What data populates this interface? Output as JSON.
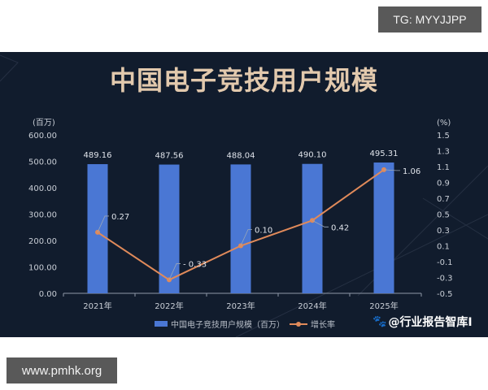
{
  "overlay": {
    "top_tag": "TG: MYYJJPP",
    "bottom_tag": "www.pmhk.org"
  },
  "panel": {
    "title": "中国电子竞技用户规模",
    "watermark_icon": "paw-icon",
    "watermark": "@行业报告智库I"
  },
  "colors": {
    "background": "#111c2d",
    "bar": "#4a77d4",
    "line": "#e08a5a",
    "title": "#e2c9ad"
  },
  "chart_data": {
    "type": "bar+line",
    "title": "中国电子竞技用户规模",
    "categories": [
      "2021年",
      "2022年",
      "2023年",
      "2024年",
      "2025年"
    ],
    "series": [
      {
        "name": "中国电子竞技用户规模（百万）",
        "type": "bar",
        "axis": "left",
        "values": [
          489.16,
          487.56,
          488.04,
          490.1,
          495.31
        ],
        "labels": [
          "489.16",
          "487.56",
          "488.04",
          "490.10",
          "495.31"
        ]
      },
      {
        "name": "增长率",
        "type": "line",
        "axis": "right",
        "values": [
          0.27,
          -0.33,
          0.1,
          0.42,
          1.06
        ],
        "labels": [
          "0.27",
          "- 0.33",
          "0.10",
          "0.42",
          "1.06"
        ]
      }
    ],
    "left_axis": {
      "unit": "(百万)",
      "ticks": [
        "0.00",
        "100.00",
        "200.00",
        "300.00",
        "400.00",
        "500.00",
        "600.00"
      ],
      "range": [
        0,
        600
      ]
    },
    "right_axis": {
      "unit": "(%)",
      "ticks": [
        "-0.5",
        "-0.3",
        "-0.1",
        "0.1",
        "0.3",
        "0.5",
        "0.7",
        "0.9",
        "1.1",
        "1.3",
        "1.5"
      ],
      "range": [
        -0.5,
        1.5
      ]
    },
    "legend": {
      "position": "bottom",
      "entries": [
        "中国电子竞技用户规模（百万）",
        "增长率"
      ]
    },
    "grid": false
  }
}
